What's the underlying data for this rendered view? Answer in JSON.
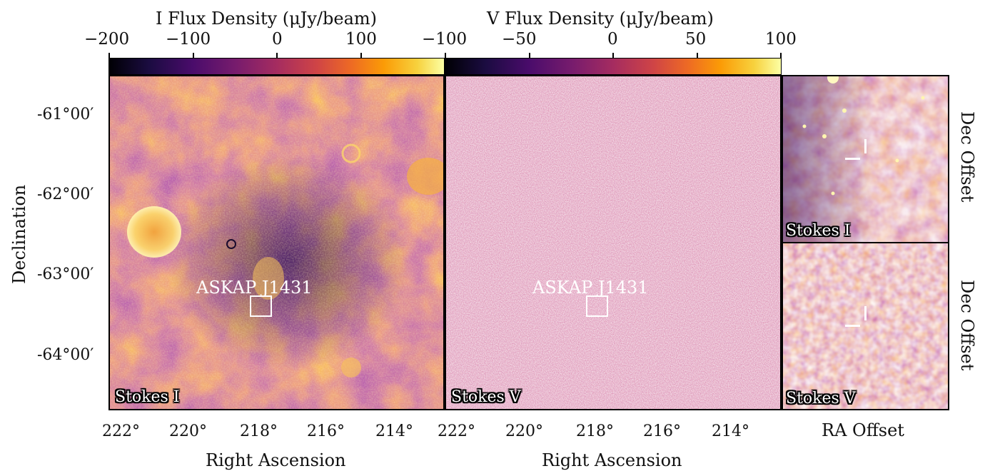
{
  "colorbars": [
    {
      "label": "I Flux Density (μJy/beam)",
      "ticks": [
        "−200",
        "−100",
        "0",
        "100"
      ]
    },
    {
      "label": "V Flux Density (μJy/beam)",
      "ticks": [
        "−100",
        "−50",
        "0",
        "50",
        "100"
      ]
    }
  ],
  "left_axis": {
    "label": "Declination",
    "ticks": [
      "-61°00′",
      "-62°00′",
      "-63°00′",
      "-64°00′"
    ]
  },
  "x_axis": {
    "label": "Right Ascension",
    "ticks": [
      "222°",
      "220°",
      "218°",
      "216°",
      "214°"
    ]
  },
  "panels": {
    "main_i": {
      "stokes": "Stokes I",
      "source_label": "ASKAP J1431"
    },
    "main_v": {
      "stokes": "Stokes V",
      "source_label": "ASKAP J1431"
    },
    "zoom_i": {
      "stokes": "Stokes I",
      "side_label": "Dec Offset"
    },
    "zoom_v": {
      "stokes": "Stokes V",
      "side_label": "Dec Offset"
    }
  },
  "zoom_x_label": "RA Offset",
  "colormap": "inferno"
}
